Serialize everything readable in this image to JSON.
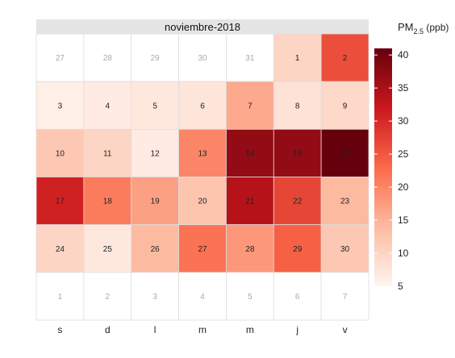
{
  "chart_data": {
    "type": "heatmap",
    "title": "noviembre-2018",
    "weekday_labels": [
      "s",
      "d",
      "l",
      "m",
      "m",
      "j",
      "v"
    ],
    "legend": {
      "title": "PM",
      "subscript": "2.5",
      "unit": " (ppb)",
      "ticks": [
        40,
        35,
        30,
        25,
        20,
        15,
        10,
        5
      ],
      "min": 5,
      "max": 41,
      "position": "right"
    },
    "colors": {
      "low": "#fff5f0",
      "mid": "#fb6a4a",
      "high": "#67000d",
      "header_bg": "#e5e5e5",
      "grid": "#dddddd",
      "empty_text": "#aaaaaa"
    },
    "weeks": [
      [
        {
          "day": "27",
          "value": null
        },
        {
          "day": "28",
          "value": null
        },
        {
          "day": "29",
          "value": null
        },
        {
          "day": "30",
          "value": null
        },
        {
          "day": "31",
          "value": null
        },
        {
          "day": "1",
          "value": 10
        },
        {
          "day": "2",
          "value": 26
        }
      ],
      [
        {
          "day": "3",
          "value": 6
        },
        {
          "day": "4",
          "value": 6.5
        },
        {
          "day": "5",
          "value": 7
        },
        {
          "day": "6",
          "value": 7.5
        },
        {
          "day": "7",
          "value": 16
        },
        {
          "day": "8",
          "value": 8
        },
        {
          "day": "9",
          "value": 9.5
        }
      ],
      [
        {
          "day": "10",
          "value": 12
        },
        {
          "day": "11",
          "value": 10
        },
        {
          "day": "12",
          "value": 6.5
        },
        {
          "day": "13",
          "value": 20
        },
        {
          "day": "14",
          "value": 37
        },
        {
          "day": "15",
          "value": 37
        },
        {
          "day": "16",
          "value": 41
        }
      ],
      [
        {
          "day": "17",
          "value": 31
        },
        {
          "day": "18",
          "value": 21
        },
        {
          "day": "19",
          "value": 17
        },
        {
          "day": "20",
          "value": 12.5
        },
        {
          "day": "21",
          "value": 34
        },
        {
          "day": "22",
          "value": 27
        },
        {
          "day": "23",
          "value": 14
        }
      ],
      [
        {
          "day": "24",
          "value": 10
        },
        {
          "day": "25",
          "value": 7
        },
        {
          "day": "26",
          "value": 14
        },
        {
          "day": "27",
          "value": 22
        },
        {
          "day": "28",
          "value": 18
        },
        {
          "day": "29",
          "value": 24
        },
        {
          "day": "30",
          "value": 12
        }
      ],
      [
        {
          "day": "1",
          "value": null
        },
        {
          "day": "2",
          "value": null
        },
        {
          "day": "3",
          "value": null
        },
        {
          "day": "4",
          "value": null
        },
        {
          "day": "5",
          "value": null
        },
        {
          "day": "6",
          "value": null
        },
        {
          "day": "7",
          "value": null
        }
      ]
    ]
  }
}
